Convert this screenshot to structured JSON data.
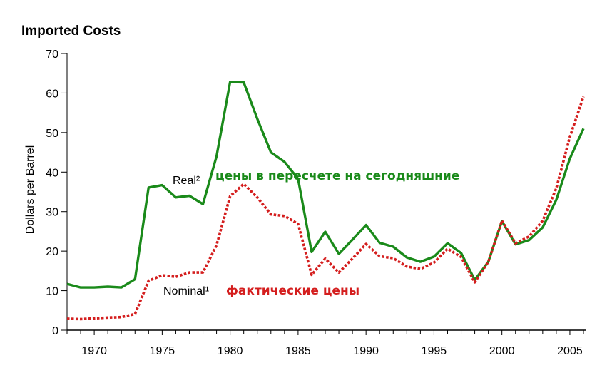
{
  "chart_data": {
    "type": "line",
    "title": "Imported Costs",
    "ylabel": "Dollars per Barrel",
    "xlabel": "",
    "xlim": [
      1968,
      2006
    ],
    "ylim": [
      0,
      70
    ],
    "yticks": [
      0,
      10,
      20,
      30,
      40,
      50,
      60,
      70
    ],
    "xticks": [
      1970,
      1975,
      1980,
      1985,
      1990,
      1995,
      2000,
      2005
    ],
    "years": [
      1968,
      1969,
      1970,
      1971,
      1972,
      1973,
      1974,
      1975,
      1976,
      1977,
      1978,
      1979,
      1980,
      1981,
      1982,
      1983,
      1984,
      1985,
      1986,
      1987,
      1988,
      1989,
      1990,
      1991,
      1992,
      1993,
      1994,
      1995,
      1996,
      1997,
      1998,
      1999,
      2000,
      2001,
      2002,
      2003,
      2004,
      2005,
      2006
    ],
    "series": [
      {
        "name": "Real²",
        "annotation": "цены в пересчете на сегодняшние",
        "color": "#1a8a1a",
        "values": [
          11.7,
          10.8,
          10.8,
          11.0,
          10.8,
          12.9,
          36.1,
          36.7,
          33.6,
          34.0,
          31.9,
          44.0,
          62.8,
          62.7,
          53.5,
          45.0,
          42.6,
          38.3,
          19.8,
          24.9,
          19.3,
          22.9,
          26.6,
          22.1,
          21.1,
          18.4,
          17.3,
          18.6,
          22.0,
          19.5,
          12.7,
          17.3,
          27.6,
          21.7,
          22.8,
          26.0,
          33.0,
          43.4,
          51.0
        ]
      },
      {
        "name": "Nominal¹",
        "annotation": "фактические цены",
        "color": "#d41e1e",
        "values": [
          2.9,
          2.8,
          3.0,
          3.2,
          3.3,
          4.1,
          12.5,
          13.9,
          13.5,
          14.6,
          14.6,
          21.5,
          33.9,
          37.0,
          33.6,
          29.3,
          28.9,
          26.9,
          14.0,
          18.1,
          14.6,
          18.1,
          21.8,
          18.7,
          18.2,
          16.1,
          15.5,
          17.1,
          20.6,
          18.5,
          12.1,
          17.3,
          27.7,
          22.0,
          23.7,
          27.7,
          35.9,
          48.9,
          59.1
        ]
      }
    ]
  }
}
